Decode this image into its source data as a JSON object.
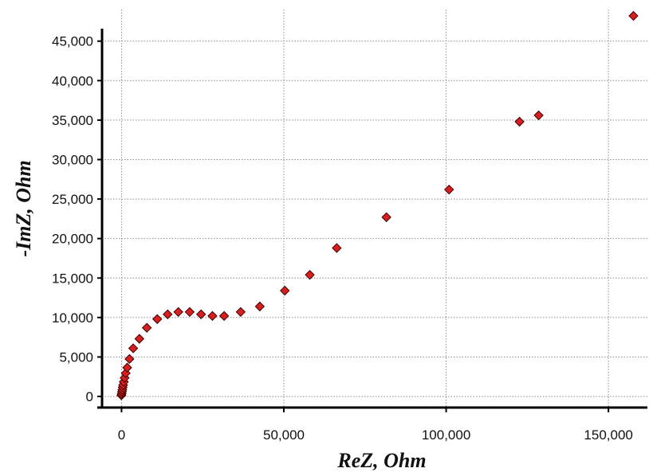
{
  "chart_data": {
    "type": "scatter",
    "xlabel": "ReZ, Ohm",
    "ylabel": "-ImZ, Ohm",
    "xlim": [
      -6000,
      162000
    ],
    "ylim": [
      -1000,
      49000
    ],
    "x_ticks": [
      0,
      50000,
      100000,
      150000
    ],
    "x_tick_labels": [
      "0",
      "50,000",
      "100,000",
      "150,000"
    ],
    "y_ticks": [
      0,
      5000,
      10000,
      15000,
      20000,
      25000,
      30000,
      35000,
      40000,
      45000
    ],
    "y_tick_labels": [
      "0",
      "5,000",
      "10,000",
      "15,000",
      "20,000",
      "25,000",
      "30,000",
      "35,000",
      "40,000",
      "45,000"
    ],
    "grid": true,
    "legend": "none",
    "marker": "diamond",
    "colors": {
      "marker_fill": "#d81f1f",
      "marker_stroke": "#3a0000",
      "grid": "#8c8c8c",
      "axis": "#000000"
    },
    "series": [
      {
        "points": [
          [
            -50,
            150
          ],
          [
            50,
            350
          ],
          [
            150,
            600
          ],
          [
            250,
            850
          ],
          [
            350,
            1150
          ],
          [
            500,
            1450
          ],
          [
            700,
            1850
          ],
          [
            950,
            2350
          ],
          [
            1300,
            2950
          ],
          [
            1750,
            3650
          ],
          [
            2450,
            4750
          ],
          [
            3600,
            6100
          ],
          [
            5500,
            7300
          ],
          [
            7800,
            8700
          ],
          [
            11000,
            9800
          ],
          [
            14200,
            10400
          ],
          [
            17500,
            10700
          ],
          [
            21000,
            10700
          ],
          [
            24500,
            10400
          ],
          [
            28000,
            10200
          ],
          [
            31600,
            10200
          ],
          [
            36700,
            10700
          ],
          [
            42600,
            11400
          ],
          [
            50300,
            13400
          ],
          [
            58000,
            15400
          ],
          [
            66300,
            18800
          ],
          [
            81600,
            22700
          ],
          [
            100900,
            26200
          ],
          [
            122600,
            34800
          ],
          [
            128500,
            35600
          ],
          [
            157700,
            48200
          ]
        ]
      }
    ]
  }
}
